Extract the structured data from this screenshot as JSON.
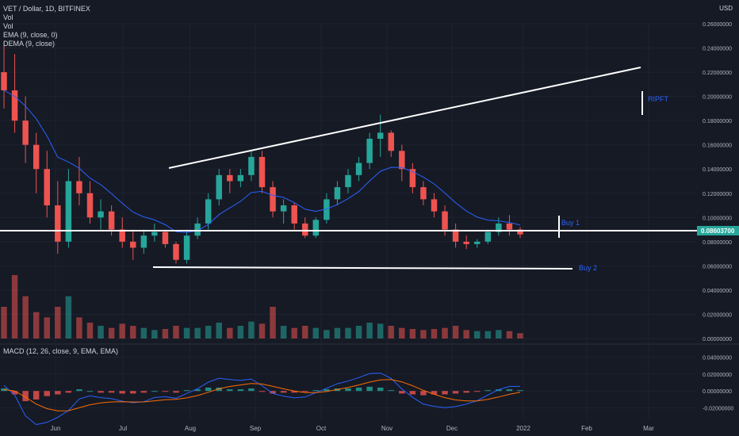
{
  "symbol_line": "VET / Dollar, 1D, BITFINEX",
  "indicators": [
    "Vol",
    "Vol",
    "EMA (9, close, 0)",
    "DEMA (9, close)"
  ],
  "macd_label": "MACD (12, 26, close, 9, EMA, EMA)",
  "currency": "USD",
  "price_axis_labels": [
    "0.26000000",
    "0.24000000",
    "0.22000000",
    "0.20000000",
    "0.18000000",
    "0.16000000",
    "0.14000000",
    "0.12000000",
    "0.10000000",
    "0.08000000",
    "0.06000000",
    "0.04000000",
    "0.02000000",
    "0.00000000"
  ],
  "macd_axis_labels": [
    "0.04000000",
    "0.02000000",
    "0.00000000",
    "-0.02000000"
  ],
  "time_axis_labels": [
    "Jun",
    "Jul",
    "Aug",
    "Sep",
    "Oct",
    "Nov",
    "Dec",
    "2022",
    "Feb",
    "Mar"
  ],
  "current_price": "0.08603700",
  "annotations": {
    "ripft": "RIPFT",
    "buy1": "Buy 1",
    "buy2": "Buy 2"
  },
  "colors": {
    "background": "#161a25",
    "up": "#26a69a",
    "down": "#ef5350",
    "ema": "#2962ff",
    "macd_signal": "#ff6d00",
    "annotation_text": "#2962ff",
    "price_badge": "#26a69a"
  },
  "chart_data": {
    "type": "candlestick",
    "price_range": [
      0.0,
      0.26
    ],
    "support_level": 0.086,
    "candles_ohlc": [
      [
        0.22,
        0.245,
        0.19,
        0.205
      ],
      [
        0.205,
        0.235,
        0.17,
        0.18
      ],
      [
        0.18,
        0.2,
        0.145,
        0.16
      ],
      [
        0.16,
        0.17,
        0.12,
        0.14
      ],
      [
        0.14,
        0.155,
        0.1,
        0.11
      ],
      [
        0.11,
        0.13,
        0.07,
        0.08
      ],
      [
        0.08,
        0.14,
        0.075,
        0.13
      ],
      [
        0.13,
        0.15,
        0.11,
        0.12
      ],
      [
        0.12,
        0.13,
        0.095,
        0.1
      ],
      [
        0.1,
        0.115,
        0.09,
        0.105
      ],
      [
        0.105,
        0.11,
        0.085,
        0.09
      ],
      [
        0.09,
        0.1,
        0.075,
        0.08
      ],
      [
        0.08,
        0.09,
        0.065,
        0.075
      ],
      [
        0.075,
        0.09,
        0.07,
        0.085
      ],
      [
        0.085,
        0.095,
        0.08,
        0.088
      ],
      [
        0.088,
        0.09,
        0.075,
        0.078
      ],
      [
        0.078,
        0.08,
        0.062,
        0.065
      ],
      [
        0.065,
        0.09,
        0.062,
        0.085
      ],
      [
        0.085,
        0.1,
        0.082,
        0.095
      ],
      [
        0.095,
        0.12,
        0.09,
        0.115
      ],
      [
        0.115,
        0.14,
        0.11,
        0.135
      ],
      [
        0.135,
        0.14,
        0.12,
        0.13
      ],
      [
        0.13,
        0.14,
        0.125,
        0.135
      ],
      [
        0.135,
        0.155,
        0.13,
        0.15
      ],
      [
        0.15,
        0.155,
        0.12,
        0.125
      ],
      [
        0.125,
        0.13,
        0.1,
        0.105
      ],
      [
        0.105,
        0.115,
        0.095,
        0.11
      ],
      [
        0.11,
        0.112,
        0.09,
        0.095
      ],
      [
        0.095,
        0.1,
        0.083,
        0.085
      ],
      [
        0.085,
        0.1,
        0.083,
        0.098
      ],
      [
        0.098,
        0.12,
        0.095,
        0.115
      ],
      [
        0.115,
        0.13,
        0.11,
        0.125
      ],
      [
        0.125,
        0.14,
        0.12,
        0.135
      ],
      [
        0.135,
        0.15,
        0.13,
        0.145
      ],
      [
        0.145,
        0.17,
        0.14,
        0.165
      ],
      [
        0.165,
        0.185,
        0.15,
        0.17
      ],
      [
        0.17,
        0.172,
        0.15,
        0.155
      ],
      [
        0.155,
        0.16,
        0.13,
        0.14
      ],
      [
        0.14,
        0.145,
        0.12,
        0.125
      ],
      [
        0.125,
        0.13,
        0.11,
        0.115
      ],
      [
        0.115,
        0.12,
        0.1,
        0.105
      ],
      [
        0.105,
        0.11,
        0.085,
        0.09
      ],
      [
        0.09,
        0.095,
        0.075,
        0.08
      ],
      [
        0.08,
        0.085,
        0.074,
        0.078
      ],
      [
        0.078,
        0.082,
        0.075,
        0.08
      ],
      [
        0.08,
        0.09,
        0.078,
        0.088
      ],
      [
        0.088,
        0.1,
        0.085,
        0.095
      ],
      [
        0.095,
        0.102,
        0.085,
        0.09
      ],
      [
        0.09,
        0.092,
        0.083,
        0.086
      ]
    ],
    "volume": [
      0.03,
      0.06,
      0.04,
      0.025,
      0.02,
      0.03,
      0.04,
      0.02,
      0.015,
      0.012,
      0.01,
      0.014,
      0.012,
      0.01,
      0.008,
      0.009,
      0.012,
      0.01,
      0.01,
      0.012,
      0.015,
      0.01,
      0.012,
      0.016,
      0.014,
      0.03,
      0.012,
      0.01,
      0.012,
      0.01,
      0.008,
      0.01,
      0.01,
      0.012,
      0.015,
      0.014,
      0.012,
      0.01,
      0.009,
      0.008,
      0.009,
      0.01,
      0.012,
      0.008,
      0.007,
      0.007,
      0.008,
      0.007,
      0.005
    ],
    "macd_hist": [
      0.003,
      -0.004,
      -0.012,
      -0.01,
      -0.006,
      -0.004,
      -0.002,
      0.002,
      0.0,
      -0.002,
      -0.002,
      -0.003,
      -0.003,
      -0.002,
      0.0,
      -0.001,
      -0.002,
      0.001,
      0.002,
      0.004,
      0.004,
      0.002,
      0.002,
      0.003,
      -0.001,
      -0.003,
      -0.002,
      -0.002,
      -0.001,
      0.001,
      0.002,
      0.003,
      0.003,
      0.004,
      0.005,
      0.004,
      0.001,
      -0.003,
      -0.004,
      -0.005,
      -0.004,
      -0.004,
      -0.003,
      -0.002,
      -0.001,
      0.001,
      0.002,
      0.002,
      0.001
    ],
    "macd_range": [
      -0.025,
      0.045
    ]
  }
}
